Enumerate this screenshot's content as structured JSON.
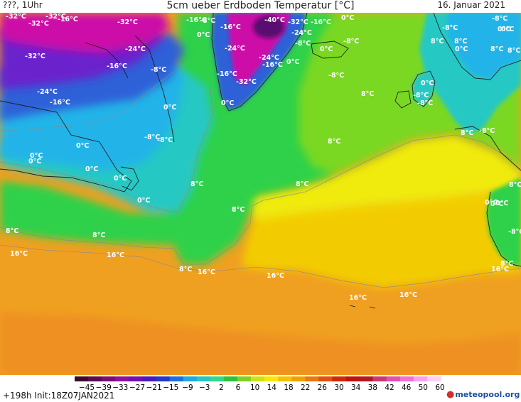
{
  "header": {
    "run_label": "???, 1Uhr",
    "title": "5cm ueber Erdboden Temperatur [°C]",
    "date": "16. Januar 2021"
  },
  "footer": {
    "init": "+198h  Init:18Z07JAN2021",
    "logo_text": "meteopool.org"
  },
  "colorbar": {
    "ticks": [
      "−45",
      "−39",
      "−33",
      "−27",
      "−21",
      "−15",
      "−9",
      "−3",
      "2",
      "6",
      "10",
      "14",
      "18",
      "22",
      "26",
      "30",
      "34",
      "38",
      "42",
      "46",
      "50",
      "60"
    ],
    "colors": [
      "#3a0a2a",
      "#5a0a50",
      "#7a0c78",
      "#8e10a0",
      "#7010b0",
      "#4a18c0",
      "#2038d0",
      "#1a70dc",
      "#20a8e0",
      "#22c8c8",
      "#30d890",
      "#30c040",
      "#80d020",
      "#d0e010",
      "#f8e800",
      "#f4c000",
      "#f0a000",
      "#e87810",
      "#e05010",
      "#d02808",
      "#c01010",
      "#b01828",
      "#c83878",
      "#e050b0",
      "#f070d8",
      "#f8a0ec",
      "#fcd0f6"
    ]
  },
  "map": {
    "colors": {
      "land_cold": "#22b4e8",
      "land_cold_edge": "#1f90d8",
      "teal": "#28c8c4",
      "green": "#2ed14a",
      "light_green": "#7ad822",
      "yellow": "#f0ea10",
      "gold": "#f2cc00",
      "orange": "#f2a61c",
      "deep_orange": "#ee9020",
      "magenta": "#cc0aa8",
      "purple": "#6b20cc",
      "blue": "#2f60d8",
      "dark_purple": "#5a0a70"
    },
    "labels": [
      {
        "text": "-32°C"
      },
      {
        "text": "-32°C"
      },
      {
        "text": "-32°C"
      },
      {
        "text": "-32°C"
      },
      {
        "text": "-32°C"
      },
      {
        "text": "-24°C"
      },
      {
        "text": "-16°C"
      },
      {
        "text": "-16°C"
      },
      {
        "text": "-24°C"
      },
      {
        "text": "-16°C"
      },
      {
        "text": "-8°C"
      },
      {
        "text": "0°C"
      },
      {
        "text": "-8°C"
      },
      {
        "text": "-8°C"
      },
      {
        "text": "-16°C"
      },
      {
        "text": "-8°C"
      },
      {
        "text": "0°C"
      },
      {
        "text": "-16°C"
      },
      {
        "text": "-40°C"
      },
      {
        "text": "-32°C"
      },
      {
        "text": "-16°C"
      },
      {
        "text": "-24°C"
      },
      {
        "text": "-8°C"
      },
      {
        "text": "0°C"
      },
      {
        "text": "-8°C"
      },
      {
        "text": "0°C"
      },
      {
        "text": "-8°C"
      },
      {
        "text": "0°C"
      },
      {
        "text": "-24°C"
      },
      {
        "text": "-24°C"
      },
      {
        "text": "-16°C"
      },
      {
        "text": "0°C"
      },
      {
        "text": "-16°C"
      },
      {
        "text": "-32°C"
      },
      {
        "text": "0°C"
      },
      {
        "text": "-8°C"
      },
      {
        "text": "8°C"
      },
      {
        "text": "8°C"
      },
      {
        "text": "8°C"
      },
      {
        "text": "8°C"
      },
      {
        "text": "0°C"
      },
      {
        "text": "8°C"
      },
      {
        "text": "-8°C"
      },
      {
        "text": "-8°C"
      },
      {
        "text": "0°C"
      },
      {
        "text": "0°C"
      },
      {
        "text": "0°C"
      },
      {
        "text": "0°C"
      },
      {
        "text": "0°C"
      },
      {
        "text": "8°C"
      },
      {
        "text": "8°C"
      },
      {
        "text": "8°C"
      },
      {
        "text": "8°C"
      },
      {
        "text": "0°C"
      },
      {
        "text": "8°C"
      },
      {
        "text": "8°C"
      },
      {
        "text": "0°C"
      },
      {
        "text": "8°C"
      },
      {
        "text": "-8°C"
      },
      {
        "text": "-8°C"
      },
      {
        "text": "0°C"
      },
      {
        "text": "0°C"
      },
      {
        "text": "-8°C"
      },
      {
        "text": "0°C"
      },
      {
        "text": "0°C"
      },
      {
        "text": "8°C"
      },
      {
        "text": "16°C"
      },
      {
        "text": "16°C"
      },
      {
        "text": "8°C"
      },
      {
        "text": "16°C"
      },
      {
        "text": "16°C"
      },
      {
        "text": "16°C"
      },
      {
        "text": "16°C"
      },
      {
        "text": "16°C"
      },
      {
        "text": "8°C"
      }
    ]
  }
}
